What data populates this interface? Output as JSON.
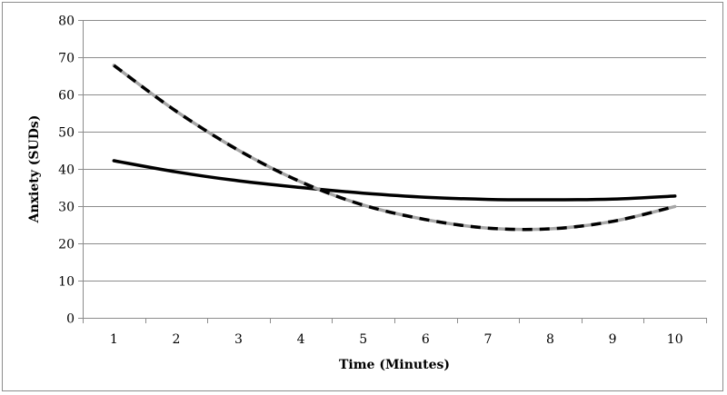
{
  "chart_data": {
    "type": "line",
    "title": "",
    "xlabel": "Time (Minutes)",
    "ylabel": "Anxiety (SUDs)",
    "x": [
      1,
      2,
      3,
      4,
      5,
      6,
      7,
      8,
      9,
      10
    ],
    "ylim": [
      0,
      80
    ],
    "yticks": [
      0,
      10,
      20,
      30,
      40,
      50,
      60,
      70,
      80
    ],
    "grid": "horizontal",
    "legend": "none",
    "series": [
      {
        "style": "solid",
        "color": "#000000",
        "values": [
          42.2,
          39.2,
          36.8,
          35.0,
          33.5,
          32.4,
          31.8,
          31.7,
          31.9,
          32.7
        ]
      },
      {
        "style": "dashed",
        "color": "#000000",
        "underlay_color": "#a6a6a6",
        "values": [
          67.8,
          55.5,
          45.0,
          36.5,
          30.3,
          26.4,
          24.1,
          23.9,
          25.9,
          29.9
        ]
      }
    ]
  }
}
